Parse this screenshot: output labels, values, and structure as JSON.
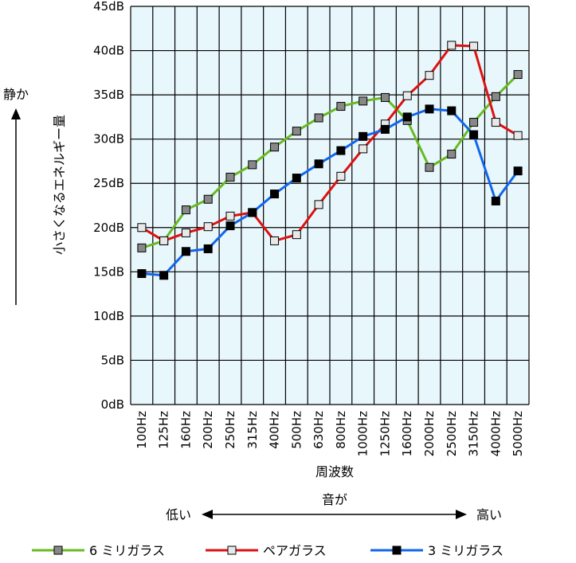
{
  "chart_data": {
    "type": "line",
    "title": "",
    "xlabel": "周波数",
    "ylabel": "小さくなるエネルギー量",
    "y_side_label": "静か",
    "x_direction": {
      "caption": "音が",
      "left": "低い",
      "right": "高い"
    },
    "ylim": [
      0,
      45
    ],
    "y_ticks": [
      0,
      5,
      10,
      15,
      20,
      25,
      30,
      35,
      40,
      45
    ],
    "y_tick_suffix": "dB",
    "grid": true,
    "legend_position": "bottom",
    "categories": [
      "100Hz",
      "125Hz",
      "160Hz",
      "200Hz",
      "250Hz",
      "315Hz",
      "400Hz",
      "500Hz",
      "630Hz",
      "800Hz",
      "1000Hz",
      "1250Hz",
      "1600Hz",
      "2000Hz",
      "2500Hz",
      "3150Hz",
      "4000Hz",
      "5000Hz"
    ],
    "series": [
      {
        "name": "6 ミリガラス",
        "color": "#66bb22",
        "marker_color": "#888888",
        "values": [
          17.7,
          18.5,
          22.0,
          23.2,
          25.7,
          27.1,
          29.1,
          30.9,
          32.4,
          33.7,
          34.3,
          34.7,
          32.1,
          26.8,
          28.3,
          31.9,
          34.8,
          37.3
        ]
      },
      {
        "name": "ペアガラス",
        "color": "#dd1111",
        "marker_color": "#e8e8e8",
        "values": [
          20.0,
          18.5,
          19.4,
          20.1,
          21.3,
          21.7,
          18.5,
          19.2,
          22.6,
          25.8,
          28.9,
          31.7,
          34.9,
          37.2,
          40.6,
          40.5,
          31.9,
          30.4
        ]
      },
      {
        "name": "3 ミリガラス",
        "color": "#1166ee",
        "marker_color": "#000000",
        "values": [
          14.8,
          14.6,
          17.3,
          17.6,
          20.2,
          21.7,
          23.8,
          25.6,
          27.2,
          28.7,
          30.3,
          31.1,
          32.5,
          33.4,
          33.2,
          30.5,
          23.0,
          26.4
        ]
      }
    ]
  }
}
